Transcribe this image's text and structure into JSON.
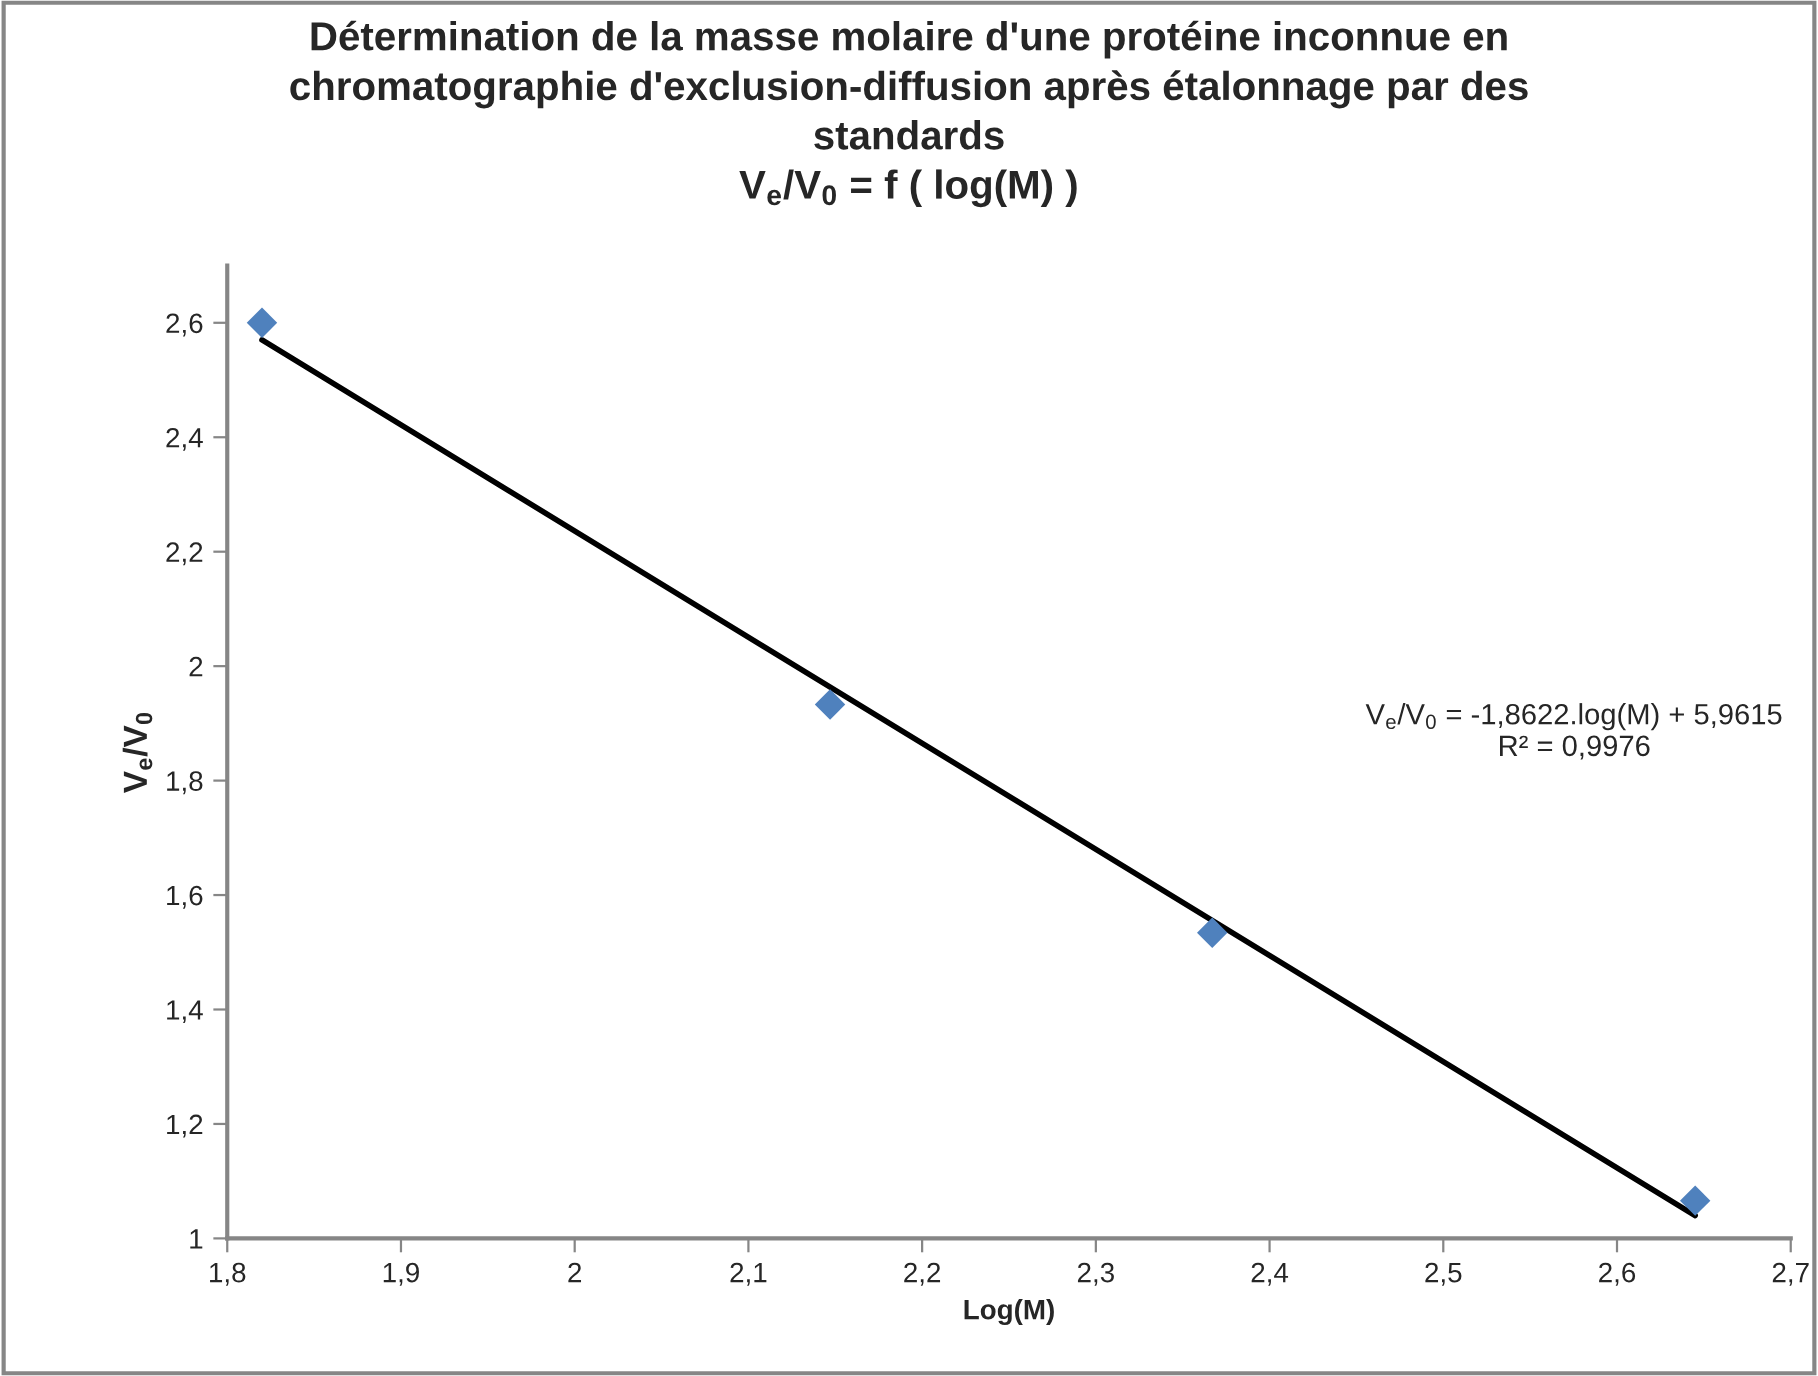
{
  "chart_data": {
    "type": "scatter",
    "title": "Détermination de la masse molaire d'une protéine inconnue en\nchromatographie d'exclusion-diffusion après étalonnage par des\nstandards\nV$_{e}$/V$_{0}$ = f ( log(M) )",
    "xlabel": "Log(M)",
    "ylabel": "V$_{e}$/V$_{0}$",
    "series": [
      {
        "color": "#4f81bd",
        "marker": "diamond",
        "x": [
          1.82,
          2.147,
          2.367,
          2.645
        ],
        "values": [
          2.6,
          1.933,
          1.534,
          1.066
        ]
      },
      {
        "type": "line",
        "color": "#000000",
        "marker": "none",
        "line_style": "solid",
        "x": [
          1.82,
          2.645
        ],
        "values": [
          2.57,
          1.04
        ]
      }
    ],
    "annotations": [
      "V$_{e}$/V$_{0}$ = -1,8622.log(M) + 5,9615\nR² = 0,9976"
    ],
    "xlim": [
      1.8,
      2.7
    ],
    "xticks": [
      {
        "value": 1.8,
        "label": "1,8"
      },
      {
        "value": 1.9,
        "label": "1,9"
      },
      2,
      {
        "value": 2.1,
        "label": "2,1"
      },
      {
        "value": 2.2,
        "label": "2,2"
      },
      {
        "value": 2.3,
        "label": "2,3"
      },
      {
        "value": 2.4,
        "label": "2,4"
      },
      {
        "value": 2.5,
        "label": "2,5"
      },
      {
        "value": 2.6,
        "label": "2,6"
      },
      {
        "value": 2.7,
        "label": "2,7"
      }
    ],
    "ylim": [
      1,
      2.7
    ],
    "yticks": [
      1,
      {
        "value": 1.2,
        "label": "1,2"
      },
      {
        "value": 1.4,
        "label": "1,4"
      },
      {
        "value": 1.6,
        "label": "1,6"
      },
      {
        "value": 1.8,
        "label": "1,8"
      },
      2,
      {
        "value": 2.2,
        "label": "2,2"
      },
      {
        "value": 2.4,
        "label": "2,4"
      },
      {
        "value": 2.6,
        "label": "2,6"
      }
    ],
    "grid": false,
    "legend": false
  }
}
